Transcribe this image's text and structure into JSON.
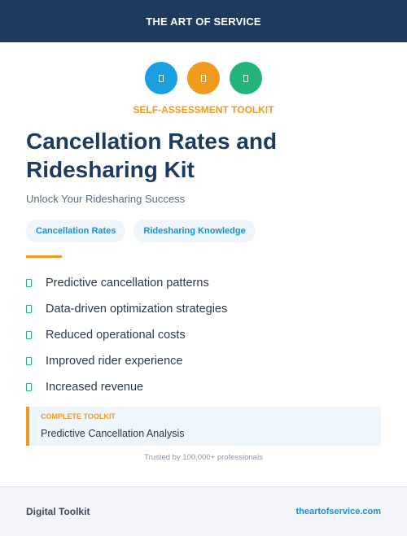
{
  "header": {
    "title": "THE ART OF SERVICE"
  },
  "icons": [
    {
      "name": "blue-doc-icon",
      "color": "#1a9fe0"
    },
    {
      "name": "orange-doc-icon",
      "color": "#f29a1e"
    },
    {
      "name": "green-doc-icon",
      "color": "#22b47a"
    }
  ],
  "kicker": "SELF-ASSESSMENT TOOLKIT",
  "title": "Cancellation Rates and Ridesharing Kit",
  "subtitle": "Unlock Your Ridesharing Success",
  "tags": [
    "Cancellation Rates",
    "Ridesharing Knowledge"
  ],
  "features": [
    "Predictive cancellation patterns",
    "Data-driven optimization strategies",
    "Reduced operational costs",
    "Improved rider experience",
    "Increased revenue"
  ],
  "callout": {
    "label": "COMPLETE TOOLKIT",
    "text": "Predictive Cancellation Analysis"
  },
  "trusted": "Trusted by 100,000+ professionals",
  "footer": {
    "left": "Digital Toolkit",
    "right": "theartofservice.com"
  },
  "colors": {
    "navy": "#1e3a5f",
    "accent_orange": "#f29a1e",
    "accent_blue": "#1a8fd0",
    "accent_green": "#22b47a"
  }
}
